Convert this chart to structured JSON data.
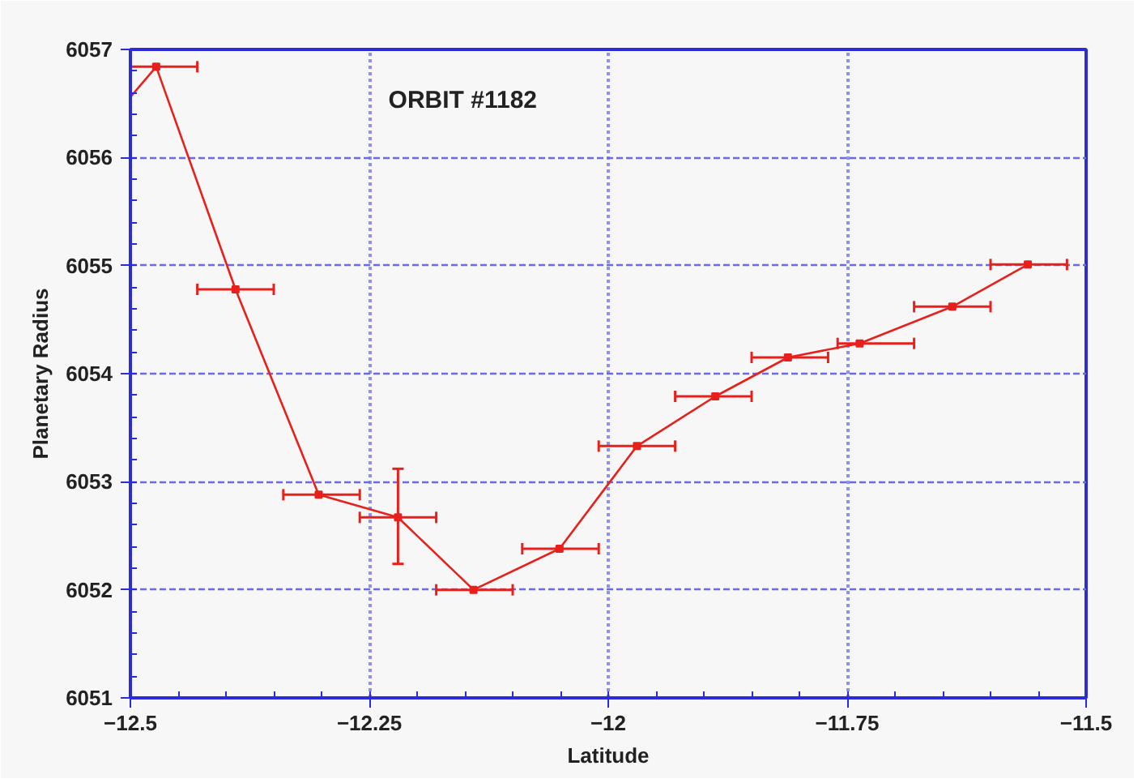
{
  "chart_data": {
    "type": "line",
    "xlabel": "Latitude",
    "ylabel": "Planetary Radius",
    "annotations": [
      "ORBIT #1182"
    ],
    "x": [
      -12.5,
      -12.473,
      -12.39,
      -12.303,
      -12.22,
      -12.141,
      -12.051,
      -11.97,
      -11.888,
      -11.812,
      -11.737,
      -11.64,
      -11.561
    ],
    "series": [
      {
        "color": "#e8201c",
        "values": [
          6056.56,
          6056.84,
          6054.78,
          6052.88,
          6052.67,
          6052.0,
          6052.38,
          6053.33,
          6053.79,
          6054.15,
          6054.28,
          6054.62,
          6055.01
        ],
        "xerrors": [
          null,
          [
            -12.5,
            -12.43
          ],
          [
            -12.43,
            -12.35
          ],
          [
            -12.34,
            -12.26
          ],
          [
            -12.26,
            -12.18
          ],
          [
            -12.18,
            -12.1
          ],
          [
            -12.09,
            -12.01
          ],
          [
            -12.01,
            -11.93
          ],
          [
            -11.93,
            -11.85
          ],
          [
            -11.85,
            -11.77
          ],
          [
            -11.76,
            -11.68
          ],
          [
            -11.68,
            -11.6
          ],
          [
            -11.6,
            -11.52
          ]
        ],
        "errors": [
          null,
          null,
          null,
          null,
          [
            6052.24,
            6053.12
          ],
          null,
          null,
          null,
          null,
          null,
          null,
          null,
          null
        ]
      }
    ],
    "xlim": [
      -12.5,
      -11.5
    ],
    "ylim": [
      6051,
      6057
    ],
    "xticks": [
      -12.5,
      -12.25,
      -12,
      -11.75,
      -11.5
    ],
    "yticks": [
      6051,
      6052,
      6053,
      6054,
      6055,
      6056,
      6057
    ],
    "grid": true,
    "marker": "square",
    "line_style": "solid"
  }
}
